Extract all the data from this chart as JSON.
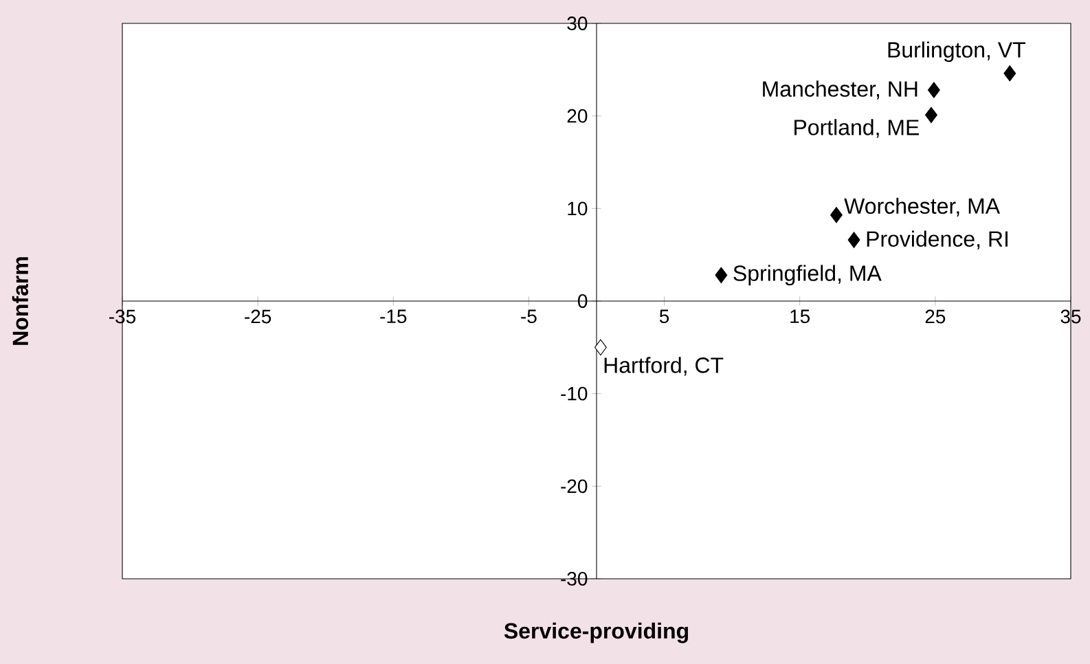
{
  "chart_data": {
    "type": "scatter",
    "xlabel": "Service-providing",
    "ylabel": "Nonfarm",
    "xlim": [
      -35,
      35
    ],
    "ylim": [
      -30,
      30
    ],
    "xticks": [
      -35,
      -25,
      -15,
      -5,
      5,
      15,
      25,
      35
    ],
    "yticks": [
      -30,
      -20,
      -10,
      0,
      10,
      20,
      30
    ],
    "marker": "diamond",
    "grid": false,
    "series": [
      {
        "color": "#000000",
        "x": [
          30.5,
          24.9,
          24.7,
          17.7,
          19.0,
          9.2
        ],
        "values": [
          24.6,
          22.8,
          20.1,
          9.3,
          6.6,
          2.8
        ]
      },
      {
        "color": "#ffffff",
        "x": [
          0.3
        ],
        "values": [
          -5.0
        ]
      }
    ],
    "annotations": [
      {
        "text": "Burlington, VT",
        "x": 30.5,
        "y": 24.6
      },
      {
        "text": "Manchester, NH",
        "x": 24.9,
        "y": 22.8
      },
      {
        "text": "Portland, ME",
        "x": 24.7,
        "y": 20.1
      },
      {
        "text": "Worchester, MA",
        "x": 17.7,
        "y": 9.3
      },
      {
        "text": "Providence, RI",
        "x": 19.0,
        "y": 6.6
      },
      {
        "text": "Springfield, MA",
        "x": 9.2,
        "y": 2.8
      },
      {
        "text": "Hartford, CT",
        "x": 0.3,
        "y": -5.0
      }
    ]
  }
}
